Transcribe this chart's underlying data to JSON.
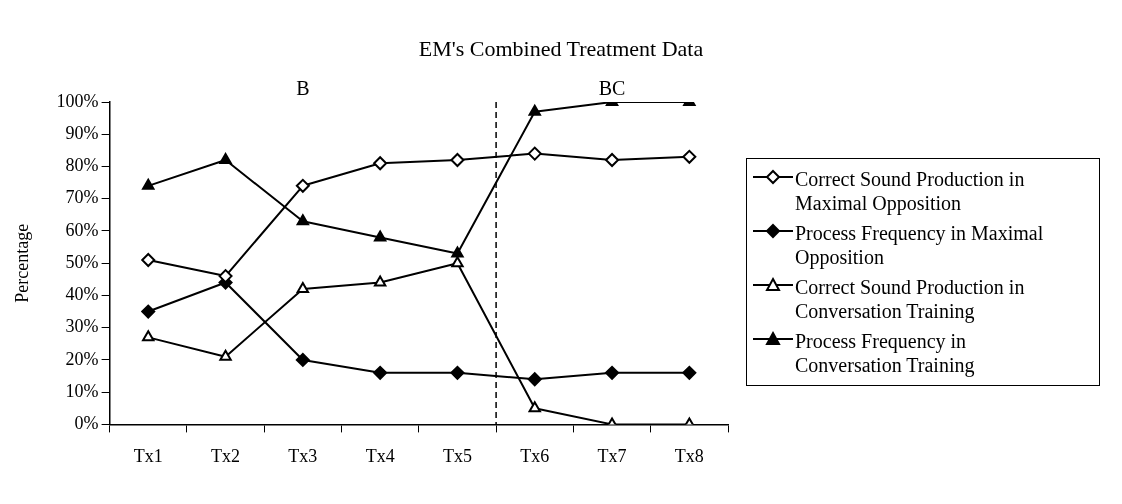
{
  "chart_data": {
    "type": "line",
    "title": "EM's Combined Treatment Data",
    "ylabel": "Percentage",
    "categories": [
      "Tx1",
      "Tx2",
      "Tx3",
      "Tx4",
      "Tx5",
      "Tx6",
      "Tx7",
      "Tx8"
    ],
    "series": [
      {
        "name": "Correct Sound Production in Maximal Opposition",
        "color": "#000000",
        "marker": "diamond",
        "values": [
          51,
          46,
          74,
          81,
          82,
          84,
          82,
          83
        ]
      },
      {
        "name": "Process Frequency in Maximal Opposition",
        "color": "#000000",
        "marker": "diamond",
        "values": [
          35,
          44,
          20,
          16,
          16,
          14,
          16,
          16
        ]
      },
      {
        "name": "Correct Sound Production in Conversation Training",
        "color": "#000000",
        "marker": "triangle",
        "values": [
          27,
          21,
          42,
          44,
          50,
          5,
          0,
          0
        ]
      },
      {
        "name": "Process Frequency in Conversation Training",
        "color": "#000000",
        "marker": "triangle",
        "values": [
          74,
          82,
          63,
          58,
          53,
          97,
          100,
          100
        ]
      }
    ],
    "ylim": [
      0,
      100
    ],
    "yticks": [
      {
        "value": 0,
        "label": "0%"
      },
      {
        "value": 10,
        "label": "10%"
      },
      {
        "value": 20,
        "label": "20%"
      },
      {
        "value": 30,
        "label": "30%"
      },
      {
        "value": 40,
        "label": "40%"
      },
      {
        "value": 50,
        "label": "50%"
      },
      {
        "value": 60,
        "label": "60%"
      },
      {
        "value": 70,
        "label": "70%"
      },
      {
        "value": 80,
        "label": "80%"
      },
      {
        "value": 90,
        "label": "90%"
      },
      {
        "value": 100,
        "label": "100%"
      }
    ],
    "annotations": [
      "B",
      "BC"
    ],
    "grid": false,
    "legend": "right",
    "line_style": "solid"
  }
}
